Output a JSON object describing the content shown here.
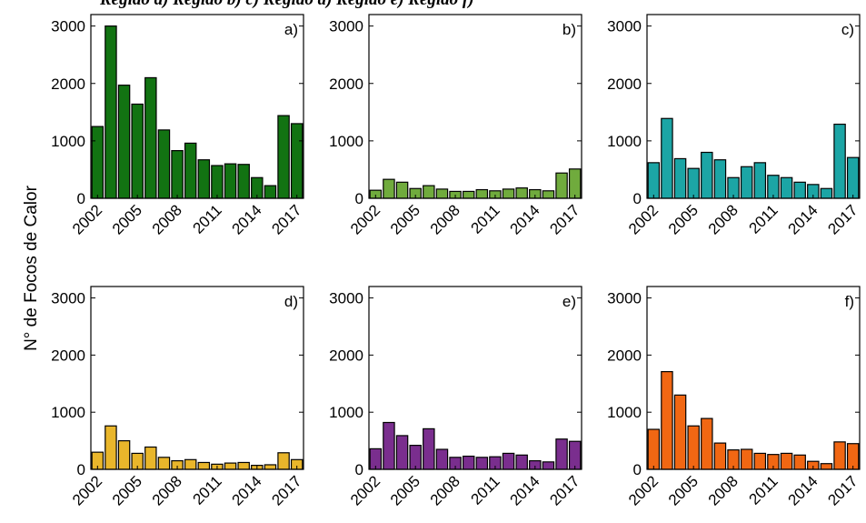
{
  "top_caption": "Região a) Região b) c) Região d) Região e) Região f)",
  "ylabel": "N° de Focos de Calor",
  "chart_data": [
    {
      "type": "bar",
      "panel_label": "a)",
      "color": "#127312",
      "categories": [
        "2002",
        "2003",
        "2004",
        "2005",
        "2006",
        "2007",
        "2008",
        "2009",
        "2010",
        "2011",
        "2012",
        "2013",
        "2014",
        "2015",
        "2016",
        "2017"
      ],
      "values": [
        1250,
        3000,
        1970,
        1640,
        2100,
        1190,
        830,
        960,
        670,
        570,
        600,
        590,
        360,
        220,
        1440,
        1300
      ],
      "ylim": [
        0,
        3200
      ],
      "yticks": [
        0,
        1000,
        2000,
        3000
      ],
      "xticks": [
        "2002",
        "2005",
        "2008",
        "2011",
        "2014",
        "2017"
      ]
    },
    {
      "type": "bar",
      "panel_label": "b)",
      "color": "#70AB3D",
      "categories": [
        "2002",
        "2003",
        "2004",
        "2005",
        "2006",
        "2007",
        "2008",
        "2009",
        "2010",
        "2011",
        "2012",
        "2013",
        "2014",
        "2015",
        "2016",
        "2017"
      ],
      "values": [
        140,
        330,
        280,
        170,
        220,
        160,
        120,
        120,
        150,
        130,
        160,
        180,
        150,
        130,
        440,
        510
      ],
      "ylim": [
        0,
        3200
      ],
      "yticks": [
        0,
        1000,
        2000,
        3000
      ],
      "xticks": [
        "2002",
        "2005",
        "2008",
        "2011",
        "2014",
        "2017"
      ]
    },
    {
      "type": "bar",
      "panel_label": "c)",
      "color": "#1CA5A5",
      "categories": [
        "2002",
        "2003",
        "2004",
        "2005",
        "2006",
        "2007",
        "2008",
        "2009",
        "2010",
        "2011",
        "2012",
        "2013",
        "2014",
        "2015",
        "2016",
        "2017"
      ],
      "values": [
        620,
        1390,
        690,
        520,
        800,
        670,
        360,
        550,
        620,
        400,
        360,
        280,
        240,
        170,
        1290,
        710
      ],
      "ylim": [
        0,
        3200
      ],
      "yticks": [
        0,
        1000,
        2000,
        3000
      ],
      "xticks": [
        "2002",
        "2005",
        "2008",
        "2011",
        "2014",
        "2017"
      ]
    },
    {
      "type": "bar",
      "panel_label": "d)",
      "color": "#E9B62B",
      "categories": [
        "2002",
        "2003",
        "2004",
        "2005",
        "2006",
        "2007",
        "2008",
        "2009",
        "2010",
        "2011",
        "2012",
        "2013",
        "2014",
        "2015",
        "2016",
        "2017"
      ],
      "values": [
        300,
        760,
        500,
        280,
        390,
        210,
        150,
        170,
        120,
        90,
        110,
        120,
        70,
        80,
        290,
        170
      ],
      "ylim": [
        0,
        3200
      ],
      "yticks": [
        0,
        1000,
        2000,
        3000
      ],
      "xticks": [
        "2002",
        "2005",
        "2008",
        "2011",
        "2014",
        "2017"
      ]
    },
    {
      "type": "bar",
      "panel_label": "e)",
      "color": "#7A2E8E",
      "categories": [
        "2002",
        "2003",
        "2004",
        "2005",
        "2006",
        "2007",
        "2008",
        "2009",
        "2010",
        "2011",
        "2012",
        "2013",
        "2014",
        "2015",
        "2016",
        "2017"
      ],
      "values": [
        360,
        820,
        590,
        420,
        710,
        350,
        210,
        230,
        210,
        220,
        280,
        250,
        150,
        130,
        530,
        490
      ],
      "ylim": [
        0,
        3200
      ],
      "yticks": [
        0,
        1000,
        2000,
        3000
      ],
      "xticks": [
        "2002",
        "2005",
        "2008",
        "2011",
        "2014",
        "2017"
      ]
    },
    {
      "type": "bar",
      "panel_label": "f)",
      "color": "#F16713",
      "categories": [
        "2002",
        "2003",
        "2004",
        "2005",
        "2006",
        "2007",
        "2008",
        "2009",
        "2010",
        "2011",
        "2012",
        "2013",
        "2014",
        "2015",
        "2016",
        "2017"
      ],
      "values": [
        700,
        1710,
        1300,
        760,
        890,
        460,
        340,
        350,
        280,
        260,
        280,
        250,
        140,
        100,
        480,
        450
      ],
      "ylim": [
        0,
        3200
      ],
      "yticks": [
        0,
        1000,
        2000,
        3000
      ],
      "xticks": [
        "2002",
        "2005",
        "2008",
        "2011",
        "2014",
        "2017"
      ]
    }
  ]
}
